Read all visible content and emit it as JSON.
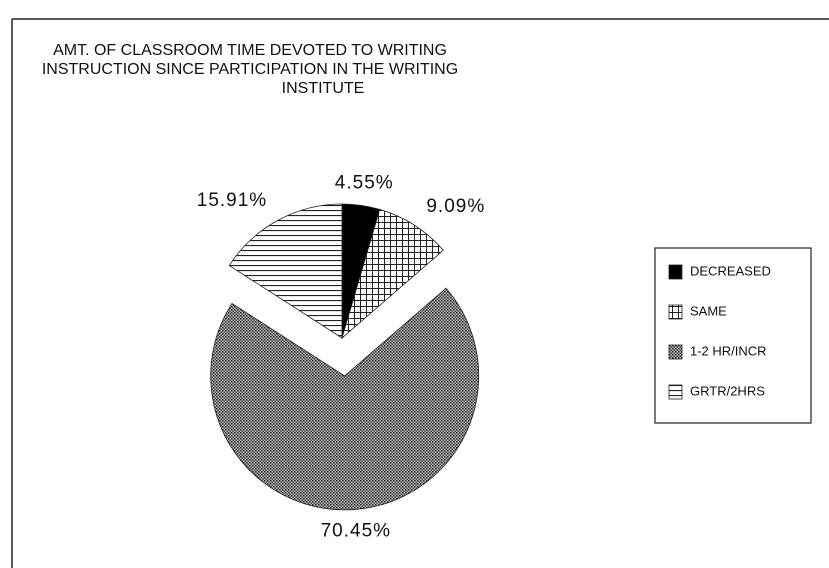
{
  "chart_data": {
    "type": "pie",
    "title": [
      "AMT. OF CLASSROOM TIME DEVOTED TO WRITING",
      "INSTRUCTION SINCE PARTICIPATION IN THE WRITING",
      "INSTITUTE"
    ],
    "categories": [
      "DECREASED",
      "SAME",
      "1-2 HR/INCR",
      "GRTR/2HRS"
    ],
    "values": [
      4.55,
      9.09,
      70.45,
      15.91
    ],
    "value_labels": [
      "4.55%",
      "9.09%",
      "70.45%",
      "15.91%"
    ],
    "legend": "right"
  }
}
